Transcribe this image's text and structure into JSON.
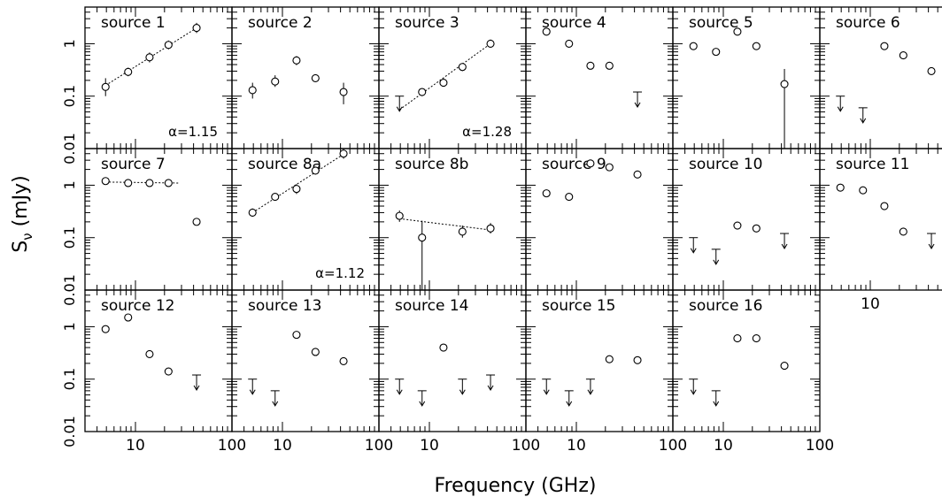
{
  "figure": {
    "xlabel": "Frequency (GHz)",
    "ylabel_main": "S",
    "ylabel_sub": "ν",
    "ylabel_unit": " (mJy)"
  },
  "chart_data": {
    "type": "scatter",
    "layout": "grid of 17 small-multiple panels, 6 columns x 3 rows (last row 5 panels)",
    "x_scale": "log",
    "y_scale": "log",
    "xlim": [
      3,
      100
    ],
    "ylim": [
      0.01,
      5
    ],
    "x_tick_labels": [
      "10",
      "100"
    ],
    "y_tick_labels": [
      "0.01",
      "0.1",
      "1"
    ],
    "frequencies_ghz": [
      4.9,
      8.4,
      14,
      22,
      43
    ],
    "panels": [
      {
        "label": "source 1",
        "points": [
          {
            "x": 4.9,
            "y": 0.15,
            "err": [
              0.1,
              0.22
            ]
          },
          {
            "x": 8.4,
            "y": 0.29,
            "err": [
              0.24,
              0.35
            ]
          },
          {
            "x": 14,
            "y": 0.55,
            "err": [
              0.44,
              0.68
            ]
          },
          {
            "x": 22,
            "y": 0.95,
            "err": [
              0.78,
              1.15
            ]
          },
          {
            "x": 43,
            "y": 2.0,
            "err": [
              1.6,
              2.5
            ]
          }
        ],
        "fit": [
          [
            4.9,
            0.16
          ],
          [
            43,
            2.0
          ]
        ],
        "alpha": "α=1.15"
      },
      {
        "label": "source 2",
        "points": [
          {
            "x": 4.9,
            "y": 0.13,
            "err": [
              0.09,
              0.18
            ]
          },
          {
            "x": 8.4,
            "y": 0.19,
            "err": [
              0.15,
              0.25
            ]
          },
          {
            "x": 14,
            "y": 0.48,
            "err": [
              0.39,
              0.58
            ]
          },
          {
            "x": 22,
            "y": 0.22
          },
          {
            "x": 43,
            "y": 0.12,
            "err": [
              0.07,
              0.18
            ]
          }
        ]
      },
      {
        "label": "source 3",
        "points": [
          {
            "x": 4.9,
            "y": 0.1,
            "upper_limit": true
          },
          {
            "x": 8.4,
            "y": 0.12,
            "err": [
              0.1,
              0.14
            ]
          },
          {
            "x": 14,
            "y": 0.18
          },
          {
            "x": 22,
            "y": 0.36,
            "err": [
              0.3,
              0.43
            ]
          },
          {
            "x": 43,
            "y": 1.0,
            "err": [
              0.85,
              1.2
            ]
          }
        ],
        "fit": [
          [
            4.9,
            0.055
          ],
          [
            43,
            1.0
          ]
        ],
        "alpha": "α=1.28"
      },
      {
        "label": "source 4",
        "points": [
          {
            "x": 4.9,
            "y": 1.7
          },
          {
            "x": 8.4,
            "y": 1.0
          },
          {
            "x": 14,
            "y": 0.38
          },
          {
            "x": 22,
            "y": 0.38
          },
          {
            "x": 43,
            "y": 0.12,
            "upper_limit": true
          }
        ]
      },
      {
        "label": "source 5",
        "points": [
          {
            "x": 4.9,
            "y": 0.9
          },
          {
            "x": 8.4,
            "y": 0.7
          },
          {
            "x": 14,
            "y": 1.7
          },
          {
            "x": 22,
            "y": 0.9
          },
          {
            "x": 43,
            "y": 0.17,
            "err": [
              0.01,
              0.33
            ]
          }
        ]
      },
      {
        "label": "source 6",
        "points": [
          {
            "x": 4.9,
            "y": 0.1,
            "upper_limit": true
          },
          {
            "x": 8.4,
            "y": 0.06,
            "upper_limit": true
          },
          {
            "x": 14,
            "y": 0.9
          },
          {
            "x": 22,
            "y": 0.6
          },
          {
            "x": 43,
            "y": 0.3
          }
        ]
      },
      {
        "label": "source 7",
        "points": [
          {
            "x": 4.9,
            "y": 1.2
          },
          {
            "x": 8.4,
            "y": 1.1
          },
          {
            "x": 14,
            "y": 1.1
          },
          {
            "x": 22,
            "y": 1.1
          },
          {
            "x": 43,
            "y": 0.2
          }
        ],
        "fit": [
          [
            4.9,
            1.15
          ],
          [
            28,
            1.1
          ]
        ]
      },
      {
        "label": "source 8a",
        "points": [
          {
            "x": 4.9,
            "y": 0.3,
            "err": [
              0.25,
              0.36
            ]
          },
          {
            "x": 8.4,
            "y": 0.6
          },
          {
            "x": 14,
            "y": 0.85,
            "err": [
              0.68,
              1.05
            ]
          },
          {
            "x": 22,
            "y": 1.9,
            "err": [
              1.6,
              2.2
            ]
          },
          {
            "x": 43,
            "y": 4.0,
            "err": [
              3.2,
              4.9
            ]
          }
        ],
        "fit": [
          [
            4.9,
            0.3
          ],
          [
            43,
            3.9
          ]
        ],
        "alpha": "α=1.12"
      },
      {
        "label": "source 8b",
        "points": [
          {
            "x": 4.9,
            "y": 0.26,
            "err": [
              0.2,
              0.33
            ]
          },
          {
            "x": 8.4,
            "y": 0.1,
            "err": [
              0.01,
              0.21
            ]
          },
          {
            "x": 22,
            "y": 0.13,
            "err": [
              0.1,
              0.17
            ]
          },
          {
            "x": 43,
            "y": 0.15,
            "err": [
              0.12,
              0.19
            ]
          }
        ],
        "fit": [
          [
            4.9,
            0.23
          ],
          [
            43,
            0.14
          ]
        ]
      },
      {
        "label": "source 9",
        "points": [
          {
            "x": 4.9,
            "y": 0.7
          },
          {
            "x": 8.4,
            "y": 0.6
          },
          {
            "x": 14,
            "y": 2.6
          },
          {
            "x": 22,
            "y": 2.2
          },
          {
            "x": 43,
            "y": 1.6
          }
        ]
      },
      {
        "label": "source 10",
        "points": [
          {
            "x": 4.9,
            "y": 0.1,
            "upper_limit": true
          },
          {
            "x": 8.4,
            "y": 0.06,
            "upper_limit": true
          },
          {
            "x": 14,
            "y": 0.17
          },
          {
            "x": 22,
            "y": 0.15
          },
          {
            "x": 43,
            "y": 0.12,
            "upper_limit": true
          }
        ]
      },
      {
        "label": "source 11",
        "points": [
          {
            "x": 4.9,
            "y": 0.9
          },
          {
            "x": 8.4,
            "y": 0.8
          },
          {
            "x": 14,
            "y": 0.4
          },
          {
            "x": 22,
            "y": 0.13
          },
          {
            "x": 43,
            "y": 0.12,
            "upper_limit": true
          }
        ]
      },
      {
        "label": "source 12",
        "points": [
          {
            "x": 4.9,
            "y": 0.9
          },
          {
            "x": 8.4,
            "y": 1.5
          },
          {
            "x": 14,
            "y": 0.3
          },
          {
            "x": 22,
            "y": 0.14
          },
          {
            "x": 43,
            "y": 0.12,
            "upper_limit": true
          }
        ]
      },
      {
        "label": "source 13",
        "points": [
          {
            "x": 4.9,
            "y": 0.1,
            "upper_limit": true
          },
          {
            "x": 8.4,
            "y": 0.06,
            "upper_limit": true
          },
          {
            "x": 14,
            "y": 0.7
          },
          {
            "x": 22,
            "y": 0.33
          },
          {
            "x": 43,
            "y": 0.22
          }
        ]
      },
      {
        "label": "source 14",
        "points": [
          {
            "x": 4.9,
            "y": 0.1,
            "upper_limit": true
          },
          {
            "x": 8.4,
            "y": 0.06,
            "upper_limit": true
          },
          {
            "x": 14,
            "y": 0.4
          },
          {
            "x": 22,
            "y": 0.1,
            "upper_limit": true
          },
          {
            "x": 43,
            "y": 0.12,
            "upper_limit": true
          }
        ]
      },
      {
        "label": "source 15",
        "points": [
          {
            "x": 4.9,
            "y": 0.1,
            "upper_limit": true
          },
          {
            "x": 8.4,
            "y": 0.06,
            "upper_limit": true
          },
          {
            "x": 14,
            "y": 0.1,
            "upper_limit": true
          },
          {
            "x": 22,
            "y": 0.24
          },
          {
            "x": 43,
            "y": 0.23
          }
        ]
      },
      {
        "label": "source 16",
        "points": [
          {
            "x": 4.9,
            "y": 0.1,
            "upper_limit": true
          },
          {
            "x": 8.4,
            "y": 0.06,
            "upper_limit": true
          },
          {
            "x": 14,
            "y": 0.6
          },
          {
            "x": 22,
            "y": 0.6
          },
          {
            "x": 43,
            "y": 0.18
          }
        ]
      }
    ]
  }
}
